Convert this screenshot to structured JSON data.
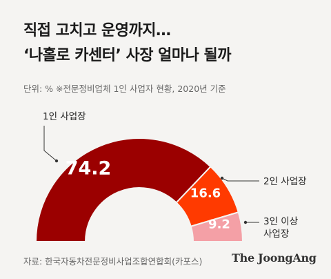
{
  "title_line1": "직접 고치고 운영까지…",
  "title_line2": "‘나홀로 카센터’ 사장 얼마나 될까",
  "unit_note": "단위: % ※전문정비업체 1인 사업자 현황, 2020년 기준",
  "source": "자료: 한국자동차전문정비사업조합연합회(카포스)",
  "brand": "The JoongAng",
  "chart_data": {
    "type": "pie",
    "style": "half-donut",
    "title": "",
    "unit": "%",
    "categories": [
      "1인 사업장",
      "2인 사업장",
      "3인 이상 사업장"
    ],
    "values": [
      74.2,
      16.6,
      9.2
    ],
    "colors": [
      "#9b0000",
      "#ff3a00",
      "#f4a0a6"
    ],
    "label_lines": [
      [
        "1인 사업장"
      ],
      [
        "2인 사업장"
      ],
      [
        "3인 이상",
        "사업장"
      ]
    ]
  }
}
